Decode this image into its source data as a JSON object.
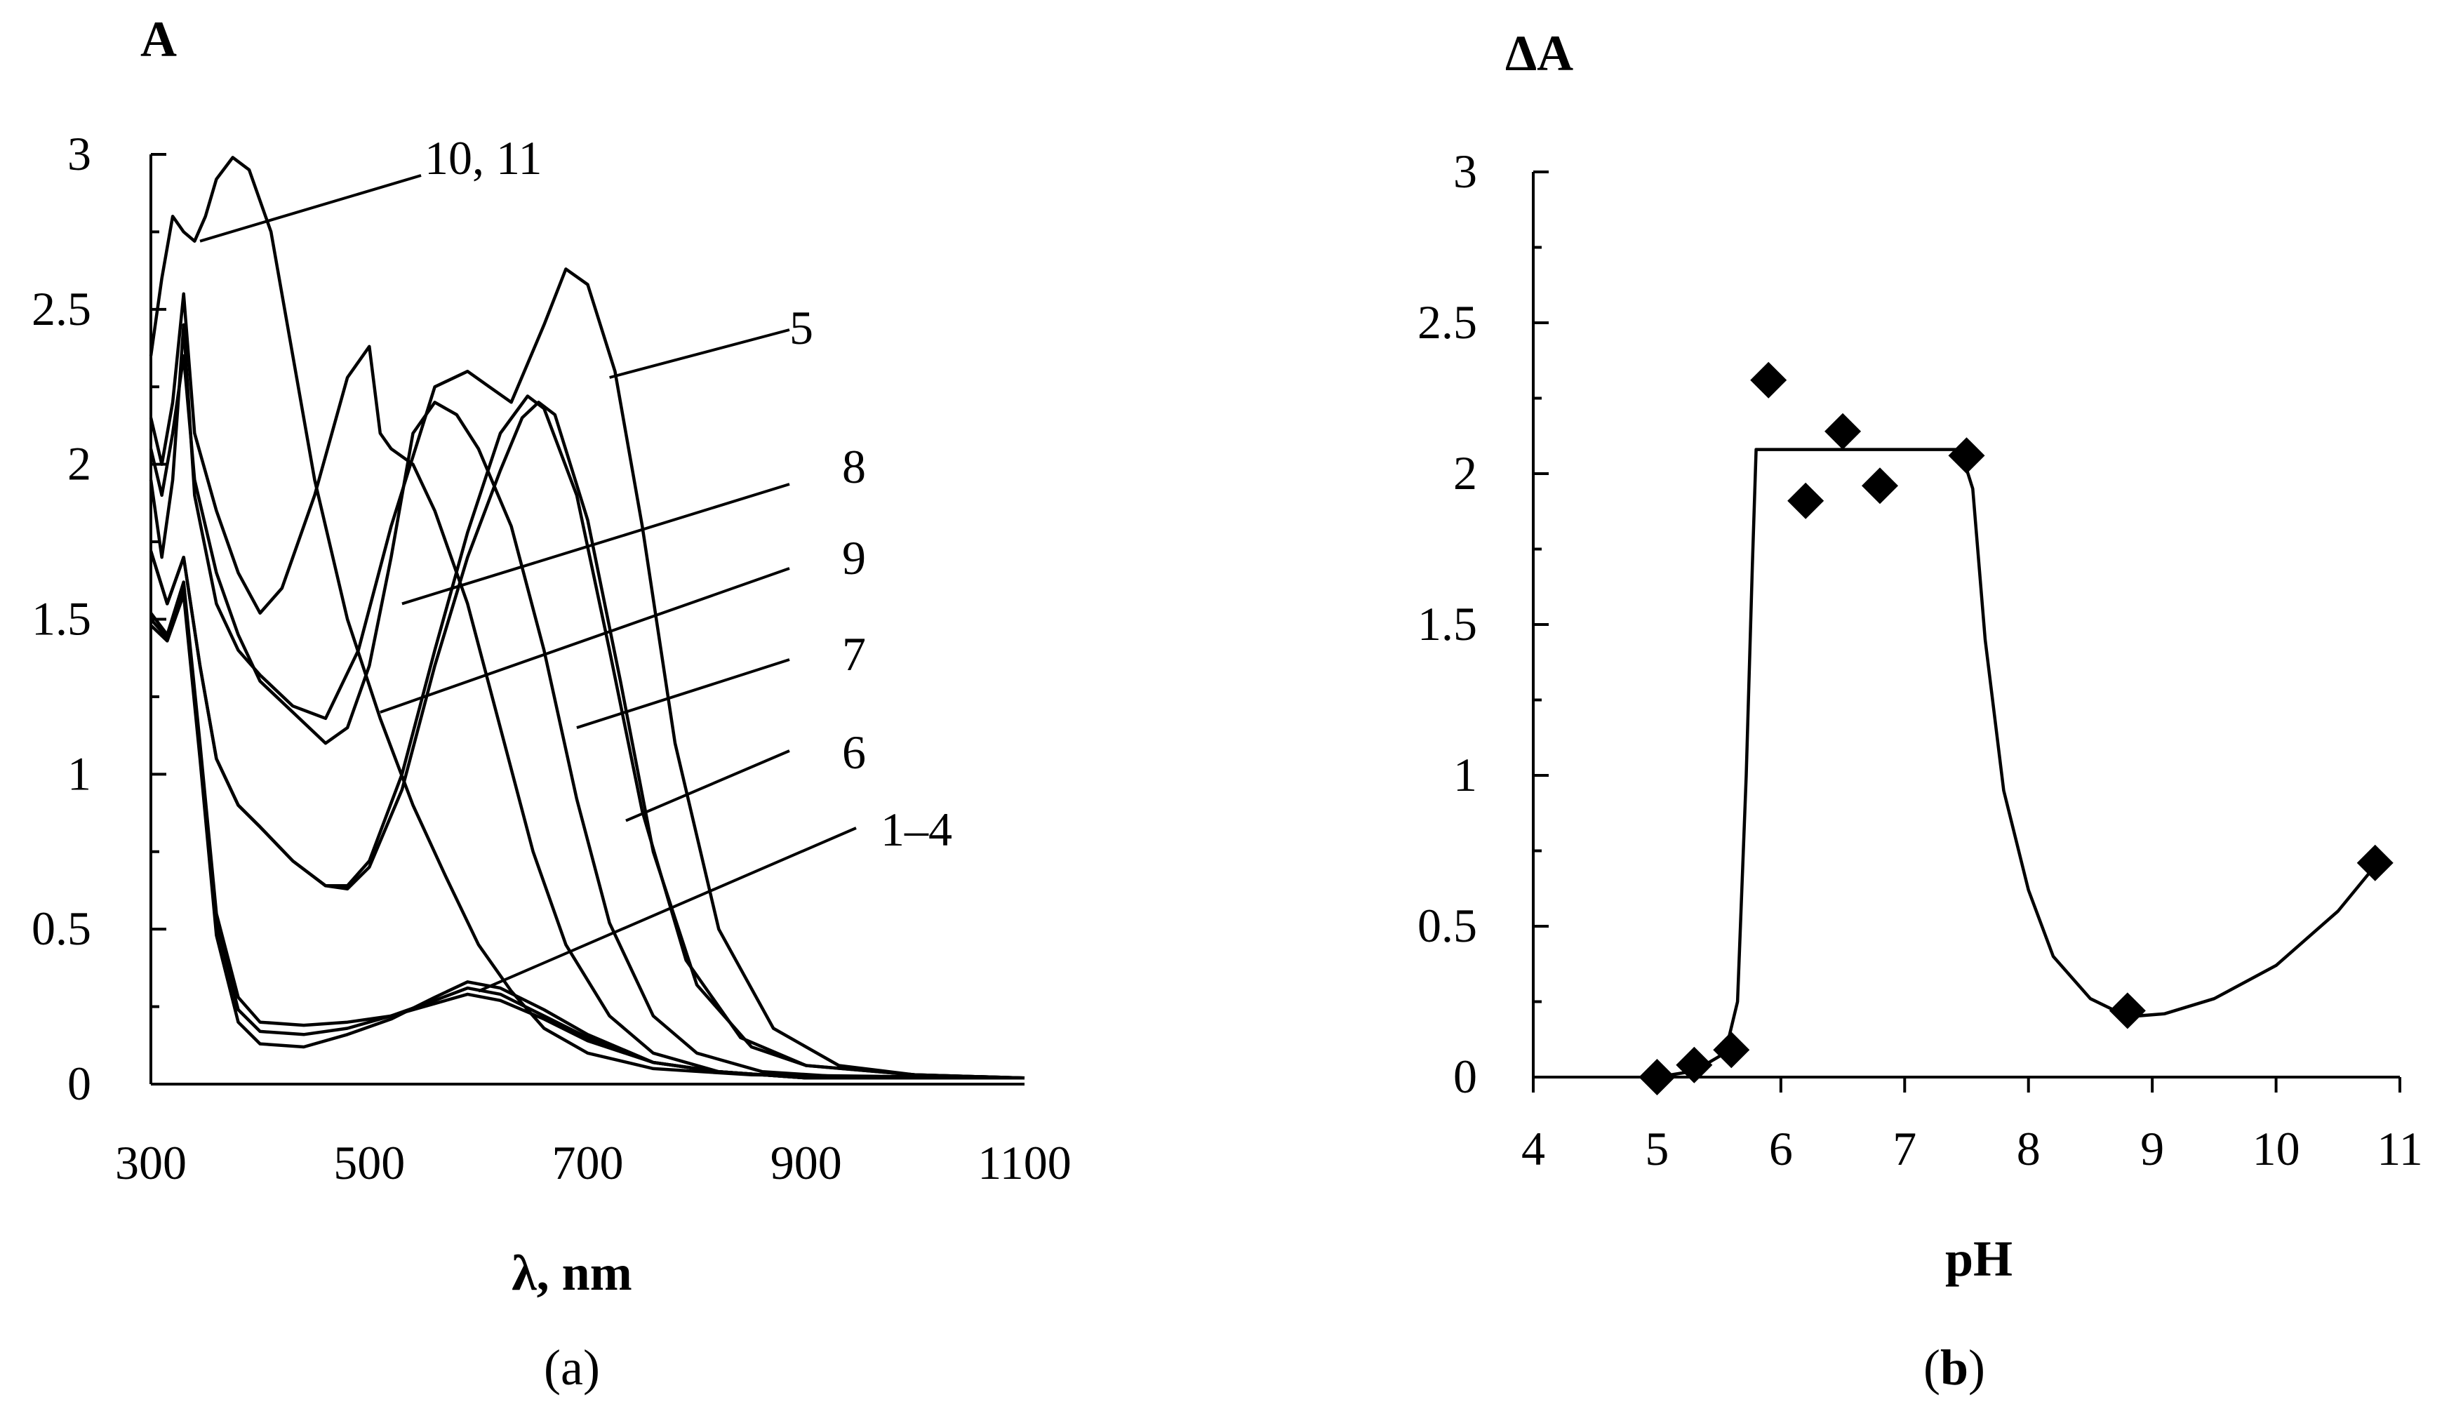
{
  "chart_data": [
    {
      "panel": "a",
      "type": "line",
      "caption_open": "(",
      "caption_letter": "a",
      "caption_close": ")",
      "ylabel": "A",
      "xlabel": "λ, nm",
      "xlim": [
        300,
        1100
      ],
      "ylim": [
        0,
        3
      ],
      "xticks": [
        300,
        500,
        700,
        900,
        1100
      ],
      "xtick_labels": [
        "300",
        "500",
        "700",
        "900",
        "1100"
      ],
      "yticks": [
        0,
        0.5,
        1,
        1.5,
        2,
        2.5,
        3
      ],
      "ytick_labels": [
        "0",
        "0.5",
        "1",
        "1.5",
        "2",
        "2.5",
        "3"
      ],
      "series": [
        {
          "name": "1–4 (a)",
          "points": [
            [
              300,
              1.52
            ],
            [
              315,
              1.45
            ],
            [
              330,
              1.62
            ],
            [
              345,
              1.1
            ],
            [
              360,
              0.55
            ],
            [
              380,
              0.28
            ],
            [
              400,
              0.2
            ],
            [
              440,
              0.19
            ],
            [
              480,
              0.2
            ],
            [
              520,
              0.22
            ],
            [
              560,
              0.26
            ],
            [
              590,
              0.29
            ],
            [
              620,
              0.27
            ],
            [
              660,
              0.21
            ],
            [
              700,
              0.14
            ],
            [
              760,
              0.07
            ],
            [
              820,
              0.04
            ],
            [
              900,
              0.02
            ],
            [
              1000,
              0.02
            ],
            [
              1100,
              0.02
            ]
          ]
        },
        {
          "name": "1–4 (b)",
          "points": [
            [
              300,
              1.5
            ],
            [
              315,
              1.44
            ],
            [
              330,
              1.6
            ],
            [
              345,
              1.08
            ],
            [
              360,
              0.52
            ],
            [
              380,
              0.24
            ],
            [
              400,
              0.17
            ],
            [
              440,
              0.16
            ],
            [
              480,
              0.18
            ],
            [
              520,
              0.22
            ],
            [
              560,
              0.27
            ],
            [
              590,
              0.31
            ],
            [
              620,
              0.29
            ],
            [
              660,
              0.22
            ],
            [
              700,
              0.15
            ],
            [
              760,
              0.07
            ],
            [
              820,
              0.04
            ],
            [
              900,
              0.02
            ],
            [
              1000,
              0.02
            ],
            [
              1100,
              0.02
            ]
          ]
        },
        {
          "name": "1–4 (c)",
          "points": [
            [
              300,
              1.48
            ],
            [
              315,
              1.43
            ],
            [
              330,
              1.58
            ],
            [
              345,
              1.05
            ],
            [
              360,
              0.48
            ],
            [
              380,
              0.2
            ],
            [
              400,
              0.13
            ],
            [
              440,
              0.12
            ],
            [
              480,
              0.16
            ],
            [
              520,
              0.21
            ],
            [
              560,
              0.28
            ],
            [
              590,
              0.33
            ],
            [
              620,
              0.31
            ],
            [
              660,
              0.24
            ],
            [
              700,
              0.16
            ],
            [
              760,
              0.07
            ],
            [
              820,
              0.04
            ],
            [
              900,
              0.02
            ],
            [
              1000,
              0.02
            ],
            [
              1100,
              0.02
            ]
          ]
        },
        {
          "name": "6",
          "points": [
            [
              300,
              1.72
            ],
            [
              315,
              1.55
            ],
            [
              330,
              1.7
            ],
            [
              345,
              1.35
            ],
            [
              360,
              1.05
            ],
            [
              380,
              0.9
            ],
            [
              400,
              0.83
            ],
            [
              430,
              0.72
            ],
            [
              460,
              0.64
            ],
            [
              480,
              0.63
            ],
            [
              500,
              0.7
            ],
            [
              530,
              0.95
            ],
            [
              560,
              1.35
            ],
            [
              590,
              1.7
            ],
            [
              620,
              1.98
            ],
            [
              640,
              2.15
            ],
            [
              655,
              2.2
            ],
            [
              670,
              2.16
            ],
            [
              700,
              1.82
            ],
            [
              730,
              1.3
            ],
            [
              760,
              0.75
            ],
            [
              800,
              0.32
            ],
            [
              850,
              0.12
            ],
            [
              900,
              0.06
            ],
            [
              1000,
              0.03
            ],
            [
              1100,
              0.02
            ]
          ]
        },
        {
          "name": "7",
          "points": [
            [
              300,
              1.72
            ],
            [
              315,
              1.55
            ],
            [
              330,
              1.7
            ],
            [
              345,
              1.35
            ],
            [
              360,
              1.05
            ],
            [
              380,
              0.9
            ],
            [
              400,
              0.83
            ],
            [
              430,
              0.72
            ],
            [
              460,
              0.64
            ],
            [
              480,
              0.64
            ],
            [
              500,
              0.72
            ],
            [
              530,
              1.0
            ],
            [
              560,
              1.4
            ],
            [
              590,
              1.78
            ],
            [
              620,
              2.1
            ],
            [
              645,
              2.22
            ],
            [
              660,
              2.18
            ],
            [
              690,
              1.9
            ],
            [
              720,
              1.4
            ],
            [
              750,
              0.88
            ],
            [
              790,
              0.4
            ],
            [
              840,
              0.15
            ],
            [
              900,
              0.06
            ],
            [
              1000,
              0.03
            ],
            [
              1100,
              0.02
            ]
          ]
        },
        {
          "name": "5",
          "points": [
            [
              300,
              1.95
            ],
            [
              310,
              1.7
            ],
            [
              320,
              1.95
            ],
            [
              330,
              2.45
            ],
            [
              340,
              1.9
            ],
            [
              360,
              1.55
            ],
            [
              380,
              1.4
            ],
            [
              400,
              1.32
            ],
            [
              430,
              1.22
            ],
            [
              460,
              1.18
            ],
            [
              490,
              1.4
            ],
            [
              520,
              1.8
            ],
            [
              560,
              2.25
            ],
            [
              590,
              2.3
            ],
            [
              610,
              2.25
            ],
            [
              630,
              2.2
            ],
            [
              660,
              2.45
            ],
            [
              680,
              2.63
            ],
            [
              700,
              2.58
            ],
            [
              725,
              2.3
            ],
            [
              750,
              1.8
            ],
            [
              780,
              1.1
            ],
            [
              820,
              0.5
            ],
            [
              870,
              0.18
            ],
            [
              930,
              0.06
            ],
            [
              1000,
              0.03
            ],
            [
              1100,
              0.02
            ]
          ]
        },
        {
          "name": "9",
          "points": [
            [
              300,
              2.05
            ],
            [
              310,
              1.9
            ],
            [
              320,
              2.1
            ],
            [
              330,
              2.35
            ],
            [
              340,
              1.95
            ],
            [
              360,
              1.65
            ],
            [
              380,
              1.45
            ],
            [
              400,
              1.3
            ],
            [
              430,
              1.2
            ],
            [
              460,
              1.1
            ],
            [
              480,
              1.15
            ],
            [
              500,
              1.35
            ],
            [
              520,
              1.7
            ],
            [
              540,
              2.1
            ],
            [
              560,
              2.2
            ],
            [
              580,
              2.16
            ],
            [
              600,
              2.05
            ],
            [
              630,
              1.8
            ],
            [
              660,
              1.4
            ],
            [
              690,
              0.92
            ],
            [
              720,
              0.52
            ],
            [
              760,
              0.22
            ],
            [
              800,
              0.1
            ],
            [
              860,
              0.04
            ],
            [
              950,
              0.02
            ],
            [
              1100,
              0.02
            ]
          ]
        },
        {
          "name": "8",
          "points": [
            [
              300,
              2.15
            ],
            [
              310,
              2.0
            ],
            [
              320,
              2.2
            ],
            [
              330,
              2.55
            ],
            [
              340,
              2.1
            ],
            [
              360,
              1.85
            ],
            [
              380,
              1.65
            ],
            [
              400,
              1.52
            ],
            [
              420,
              1.6
            ],
            [
              450,
              1.9
            ],
            [
              480,
              2.28
            ],
            [
              500,
              2.38
            ],
            [
              510,
              2.1
            ],
            [
              520,
              2.05
            ],
            [
              540,
              2.0
            ],
            [
              560,
              1.85
            ],
            [
              590,
              1.55
            ],
            [
              620,
              1.15
            ],
            [
              650,
              0.75
            ],
            [
              680,
              0.45
            ],
            [
              720,
              0.22
            ],
            [
              760,
              0.1
            ],
            [
              820,
              0.04
            ],
            [
              900,
              0.02
            ],
            [
              1100,
              0.02
            ]
          ]
        },
        {
          "name": "10, 11",
          "points": [
            [
              300,
              2.35
            ],
            [
              310,
              2.6
            ],
            [
              320,
              2.8
            ],
            [
              330,
              2.75
            ],
            [
              340,
              2.72
            ],
            [
              350,
              2.8
            ],
            [
              360,
              2.92
            ],
            [
              375,
              2.99
            ],
            [
              390,
              2.95
            ],
            [
              410,
              2.75
            ],
            [
              430,
              2.35
            ],
            [
              450,
              1.95
            ],
            [
              480,
              1.5
            ],
            [
              510,
              1.18
            ],
            [
              540,
              0.9
            ],
            [
              570,
              0.67
            ],
            [
              600,
              0.45
            ],
            [
              630,
              0.3
            ],
            [
              660,
              0.18
            ],
            [
              700,
              0.1
            ],
            [
              760,
              0.05
            ],
            [
              850,
              0.03
            ],
            [
              1100,
              0.02
            ]
          ]
        }
      ],
      "labels": [
        {
          "text": "10, 11",
          "anchor": [
            345,
            2.72
          ]
        },
        {
          "text": "5",
          "anchor": [
            720,
            2.28
          ]
        },
        {
          "text": "8",
          "anchor": [
            530,
            1.55
          ]
        },
        {
          "text": "9",
          "anchor": [
            510,
            1.2
          ]
        },
        {
          "text": "7",
          "anchor": [
            690,
            1.15
          ]
        },
        {
          "text": "6",
          "anchor": [
            735,
            0.85
          ]
        },
        {
          "text": "1–4",
          "anchor": [
            600,
            0.3
          ]
        }
      ]
    },
    {
      "panel": "b",
      "type": "scatter",
      "caption_open": "(",
      "caption_letter": "b",
      "caption_close": ")",
      "ylabel": "ΔA",
      "xlabel": "pH",
      "xlim": [
        4,
        11
      ],
      "ylim": [
        0,
        3
      ],
      "xticks": [
        4,
        5,
        6,
        7,
        8,
        9,
        10,
        11
      ],
      "xtick_labels": [
        "4",
        "5",
        "6",
        "7",
        "8",
        "9",
        "10",
        "11"
      ],
      "yticks": [
        0,
        0.5,
        1,
        1.5,
        2,
        2.5,
        3
      ],
      "ytick_labels": [
        "0",
        "0.5",
        "1",
        "1.5",
        "2",
        "2.5",
        "3"
      ],
      "points": [
        {
          "x": 5.0,
          "y": 0.0
        },
        {
          "x": 5.3,
          "y": 0.04
        },
        {
          "x": 5.6,
          "y": 0.09
        },
        {
          "x": 5.9,
          "y": 2.31
        },
        {
          "x": 6.2,
          "y": 1.91
        },
        {
          "x": 6.5,
          "y": 2.14
        },
        {
          "x": 6.8,
          "y": 1.96
        },
        {
          "x": 7.5,
          "y": 2.06
        },
        {
          "x": 8.8,
          "y": 0.22
        },
        {
          "x": 10.8,
          "y": 0.71
        }
      ],
      "fit_line": [
        [
          5.0,
          0.0
        ],
        [
          5.3,
          0.02
        ],
        [
          5.55,
          0.08
        ],
        [
          5.65,
          0.25
        ],
        [
          5.72,
          1.0
        ],
        [
          5.77,
          1.7
        ],
        [
          5.8,
          2.08
        ],
        [
          7.45,
          2.08
        ],
        [
          7.55,
          1.95
        ],
        [
          7.65,
          1.45
        ],
        [
          7.8,
          0.95
        ],
        [
          8.0,
          0.62
        ],
        [
          8.2,
          0.4
        ],
        [
          8.5,
          0.26
        ],
        [
          8.8,
          0.2
        ],
        [
          9.1,
          0.21
        ],
        [
          9.5,
          0.26
        ],
        [
          10.0,
          0.37
        ],
        [
          10.5,
          0.55
        ],
        [
          10.8,
          0.7
        ]
      ]
    }
  ]
}
